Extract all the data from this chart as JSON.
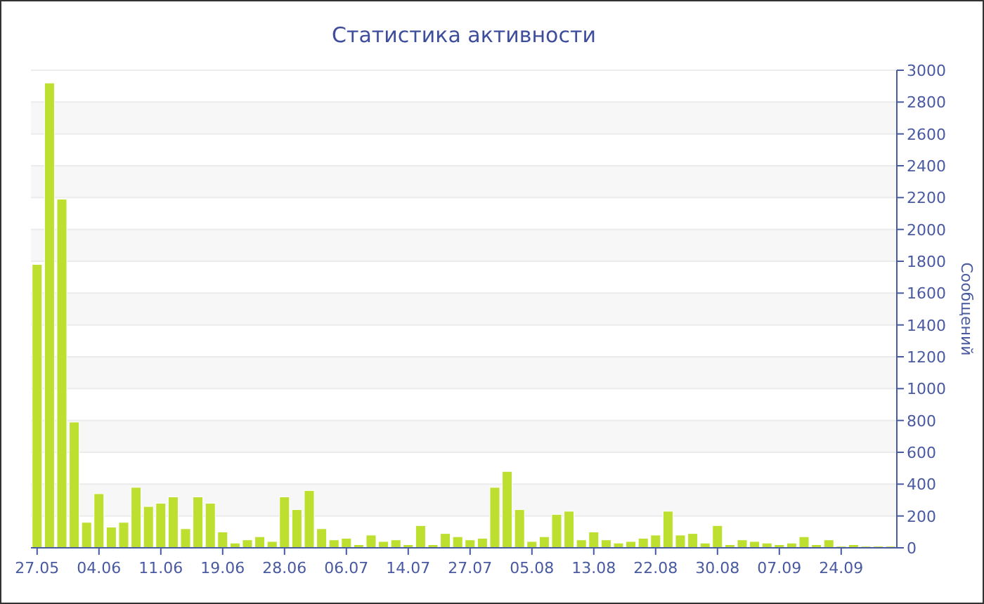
{
  "chart_data": {
    "type": "bar",
    "title": "Статистика активности",
    "ylabel": "Сообщений",
    "categories": [
      "27.05",
      null,
      null,
      null,
      null,
      "04.06",
      null,
      null,
      null,
      null,
      "11.06",
      null,
      null,
      null,
      null,
      "19.06",
      null,
      null,
      null,
      null,
      "28.06",
      null,
      null,
      null,
      null,
      "06.07",
      null,
      null,
      null,
      null,
      "14.07",
      null,
      null,
      null,
      null,
      "27.07",
      null,
      null,
      null,
      null,
      "05.08",
      null,
      null,
      null,
      null,
      "13.08",
      null,
      null,
      null,
      null,
      "22.08",
      null,
      null,
      null,
      null,
      "30.08",
      null,
      null,
      null,
      null,
      "07.09",
      null,
      null,
      null,
      null,
      "24.09",
      null,
      null,
      null,
      null
    ],
    "values": [
      1780,
      2920,
      2190,
      790,
      160,
      340,
      130,
      160,
      380,
      260,
      280,
      320,
      120,
      320,
      280,
      100,
      30,
      50,
      70,
      40,
      320,
      240,
      360,
      120,
      50,
      60,
      20,
      80,
      40,
      50,
      20,
      140,
      20,
      90,
      70,
      50,
      60,
      380,
      480,
      240,
      40,
      70,
      210,
      230,
      50,
      100,
      50,
      30,
      40,
      60,
      80,
      230,
      80,
      90,
      30,
      140,
      20,
      50,
      40,
      30,
      20,
      30,
      70,
      20,
      50,
      10,
      20,
      10,
      10,
      10
    ],
    "color": "#bde030",
    "ylim": [
      0,
      3000
    ],
    "yticks": [
      0,
      200,
      400,
      600,
      800,
      1000,
      1200,
      1400,
      1600,
      1800,
      2000,
      2200,
      2400,
      2600,
      2800,
      3000
    ],
    "grid": "y"
  }
}
